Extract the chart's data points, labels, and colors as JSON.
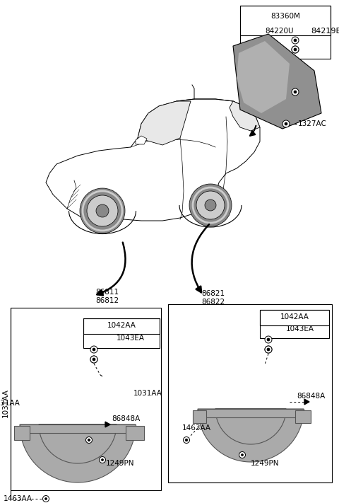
{
  "bg_color": "#ffffff",
  "fig_width": 4.8,
  "fig_height": 7.11,
  "dpi": 100,
  "labels": {
    "83360M": "83360M",
    "84220U": "84220U",
    "84219E": "84219E",
    "1327AC": "1327AC",
    "86821": "86821",
    "86822": "86822",
    "86811": "86811",
    "86812": "86812",
    "1031AA": "1031AA",
    "1042AA": "1042AA",
    "1043EA": "1043EA",
    "86848A": "86848A",
    "1249PN": "1249PN",
    "1463AA": "1463AA"
  },
  "colors": {
    "guard_fill": "#aaaaaa",
    "guard_edge": "#555555",
    "guard_light": "#c8c8c8",
    "guard_dark": "#888888",
    "panel_fill": "#888888",
    "white": "#ffffff",
    "black": "#000000"
  }
}
